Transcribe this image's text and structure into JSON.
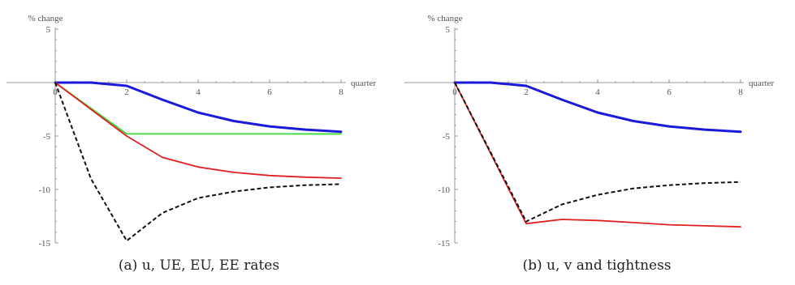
{
  "chart_data": [
    {
      "type": "line",
      "caption": "(a) u, UE, EU, EE rates",
      "xlabel": "quarter",
      "ylabel": "% change",
      "xlim": [
        0,
        8
      ],
      "ylim": [
        -15,
        5
      ],
      "xticks": [
        "0",
        "2",
        "4",
        "6",
        "8"
      ],
      "yticks": [
        "5",
        "-5",
        "-10",
        "-15"
      ],
      "grid": false,
      "series": [
        {
          "color": "#1a1adb",
          "style": "solid-thick",
          "x": [
            0,
            1,
            2,
            3,
            4,
            5,
            6,
            7,
            8
          ],
          "y": [
            0,
            0,
            -0.3,
            -1.6,
            -2.8,
            -3.6,
            -4.1,
            -4.4,
            -4.6
          ]
        },
        {
          "color": "#36d836",
          "style": "solid",
          "x": [
            0,
            1,
            2,
            3,
            4,
            5,
            6,
            7,
            8
          ],
          "y": [
            0,
            -2.4,
            -4.8,
            -4.8,
            -4.8,
            -4.8,
            -4.8,
            -4.8,
            -4.8
          ]
        },
        {
          "color": "#e02020",
          "style": "solid",
          "x": [
            0,
            1,
            2,
            3,
            4,
            5,
            6,
            7,
            8
          ],
          "y": [
            0,
            -2.5,
            -5.0,
            -7.0,
            -7.9,
            -8.4,
            -8.7,
            -8.85,
            -8.95
          ]
        },
        {
          "color": "#111111",
          "style": "dashed",
          "x": [
            0,
            1,
            2,
            3,
            4,
            5,
            6,
            7,
            8
          ],
          "y": [
            0,
            -9.0,
            -14.8,
            -12.2,
            -10.8,
            -10.2,
            -9.8,
            -9.6,
            -9.5
          ]
        }
      ]
    },
    {
      "type": "line",
      "caption": "(b) u, v and tightness",
      "xlabel": "quarter",
      "ylabel": "% change",
      "xlim": [
        0,
        8
      ],
      "ylim": [
        -15,
        5
      ],
      "xticks": [
        "0",
        "2",
        "4",
        "6",
        "8"
      ],
      "yticks": [
        "5",
        "-5",
        "-10",
        "-15"
      ],
      "grid": false,
      "series": [
        {
          "color": "#1a1adb",
          "style": "solid-thick",
          "x": [
            0,
            1,
            2,
            3,
            4,
            5,
            6,
            7,
            8
          ],
          "y": [
            0,
            0,
            -0.3,
            -1.6,
            -2.8,
            -3.6,
            -4.1,
            -4.4,
            -4.6
          ]
        },
        {
          "color": "#e02020",
          "style": "solid",
          "x": [
            0,
            1,
            2,
            3,
            4,
            5,
            6,
            7,
            8
          ],
          "y": [
            0,
            -6.6,
            -13.2,
            -12.8,
            -12.9,
            -13.1,
            -13.3,
            -13.4,
            -13.5
          ]
        },
        {
          "color": "#111111",
          "style": "dashed",
          "x": [
            0,
            1,
            2,
            3,
            4,
            5,
            6,
            7,
            8
          ],
          "y": [
            0,
            -6.5,
            -13.0,
            -11.4,
            -10.5,
            -9.9,
            -9.6,
            -9.4,
            -9.3
          ]
        }
      ]
    }
  ]
}
